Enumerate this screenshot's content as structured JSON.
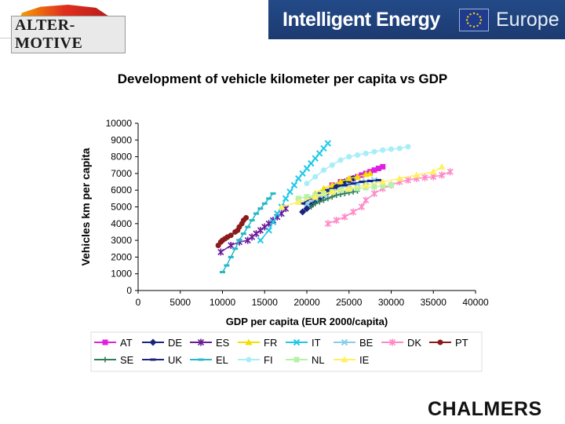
{
  "header": {
    "left_logo_text": "ALTER-MOTIVE",
    "right_logo_text": "Intelligent Energy",
    "right_logo_suffix": "Europe"
  },
  "title": "Development of vehicle kilometer per capita vs GDP",
  "footer_logo": "CHALMERS",
  "chart_data": {
    "type": "scatter",
    "title": "Development of vehicle kilometer per capita vs GDP",
    "xlabel": "GDP per capita (EUR 2000/capita)",
    "ylabel": "Vehicles km per capita",
    "xlim": [
      0,
      40000
    ],
    "ylim": [
      0,
      10000
    ],
    "xticks": [
      0,
      5000,
      10000,
      15000,
      20000,
      25000,
      30000,
      35000,
      40000
    ],
    "yticks": [
      0,
      1000,
      2000,
      3000,
      4000,
      5000,
      6000,
      7000,
      8000,
      9000,
      10000
    ],
    "grid": false,
    "legend_position": "bottom",
    "series": [
      {
        "name": "AT",
        "color": "#e020e0",
        "marker": "square",
        "x": [
          23000,
          24000,
          25000,
          25500,
          26000,
          26500,
          27000,
          27500,
          28000,
          28500,
          29000
        ],
        "y": [
          6300,
          6500,
          6600,
          6700,
          6800,
          6900,
          7000,
          7100,
          7200,
          7300,
          7400
        ]
      },
      {
        "name": "DE",
        "color": "#1a237e",
        "marker": "diamond",
        "x": [
          19500,
          20000,
          20500,
          21000,
          21500,
          22000,
          22500,
          23000,
          23500,
          24000,
          24500,
          25000,
          25500
        ],
        "y": [
          4700,
          4900,
          5100,
          5300,
          5500,
          5700,
          5900,
          6100,
          6250,
          6400,
          6500,
          6600,
          6700
        ]
      },
      {
        "name": "ES",
        "color": "#6a1b9a",
        "marker": "star",
        "x": [
          9800,
          11000,
          12000,
          13000,
          13500,
          14000,
          14500,
          15000,
          15500,
          16000,
          16500,
          17000,
          17500
        ],
        "y": [
          2300,
          2700,
          2900,
          3000,
          3200,
          3400,
          3600,
          3800,
          4000,
          4200,
          4400,
          4600,
          4900
        ]
      },
      {
        "name": "FR",
        "color": "#f0e000",
        "marker": "triangle",
        "x": [
          21000,
          22000,
          23000,
          24000,
          25000,
          26000,
          27000,
          27500
        ],
        "y": [
          5800,
          6100,
          6300,
          6500,
          6700,
          6800,
          6950,
          7000
        ]
      },
      {
        "name": "IT",
        "color": "#1ec8e8",
        "marker": "x",
        "x": [
          14500,
          15500,
          16000,
          16500,
          17000,
          17500,
          18000,
          18500,
          19000,
          19500,
          20000,
          20500,
          21000,
          21500,
          22000,
          22500
        ],
        "y": [
          3000,
          3600,
          4100,
          4600,
          5000,
          5500,
          5900,
          6300,
          6700,
          7000,
          7300,
          7600,
          7900,
          8200,
          8500,
          8800
        ]
      },
      {
        "name": "BE",
        "color": "#87ceeb",
        "marker": "x",
        "x": [
          20000,
          21000,
          22000,
          23000,
          24000,
          25000,
          26000,
          27000,
          28000
        ],
        "y": [
          5200,
          5500,
          5700,
          5900,
          6100,
          6300,
          6400,
          6500,
          6600
        ]
      },
      {
        "name": "DK",
        "color": "#ff88c8",
        "marker": "star",
        "x": [
          22500,
          23500,
          24500,
          25500,
          26500,
          27000,
          28000,
          29000,
          30000,
          31000,
          32000,
          33000,
          34000,
          35000,
          36000,
          37000
        ],
        "y": [
          4000,
          4200,
          4400,
          4700,
          5000,
          5400,
          5800,
          6100,
          6300,
          6500,
          6600,
          6700,
          6750,
          6800,
          6900,
          7100
        ]
      },
      {
        "name": "PT",
        "color": "#8b1a1a",
        "marker": "circle",
        "x": [
          9500,
          9800,
          10000,
          10300,
          10600,
          11000,
          11500,
          11800,
          12000,
          12300,
          12500,
          12800
        ],
        "y": [
          2700,
          2900,
          3000,
          3100,
          3200,
          3300,
          3500,
          3600,
          3800,
          4000,
          4200,
          4350
        ]
      },
      {
        "name": "SE",
        "color": "#2e7d5b",
        "marker": "plus",
        "x": [
          20500,
          21000,
          21500,
          22000,
          22500,
          23000,
          23500,
          24000,
          24500,
          25000,
          25500,
          26000
        ],
        "y": [
          5000,
          5200,
          5300,
          5400,
          5500,
          5600,
          5700,
          5750,
          5800,
          5850,
          5900,
          5950
        ]
      },
      {
        "name": "UK",
        "color": "#1a237e",
        "marker": "dash",
        "x": [
          19500,
          20500,
          21500,
          22500,
          23500,
          24500,
          25500,
          26500,
          27500,
          28500
        ],
        "y": [
          5200,
          5500,
          5800,
          6000,
          6200,
          6300,
          6400,
          6500,
          6550,
          6600
        ]
      },
      {
        "name": "EL",
        "color": "#26b8c8",
        "marker": "dash",
        "x": [
          10000,
          10500,
          11000,
          11500,
          12000,
          12500,
          13000,
          13500,
          14000,
          14500,
          15000,
          15500,
          16000
        ],
        "y": [
          1100,
          1500,
          2000,
          2500,
          3000,
          3400,
          3800,
          4200,
          4600,
          4900,
          5200,
          5500,
          5800
        ]
      },
      {
        "name": "FI",
        "color": "#a6eef8",
        "marker": "circle",
        "x": [
          20000,
          21000,
          22000,
          23000,
          24000,
          25000,
          26000,
          27000,
          28000,
          29000,
          30000,
          31000,
          32000
        ],
        "y": [
          6400,
          6800,
          7200,
          7500,
          7800,
          8000,
          8100,
          8200,
          8300,
          8400,
          8450,
          8500,
          8600
        ]
      },
      {
        "name": "NL",
        "color": "#b8f0a8",
        "marker": "square",
        "x": [
          19000,
          20000,
          21000,
          22000,
          23000,
          24000,
          25000,
          26000,
          27000,
          28000,
          29000,
          30000
        ],
        "y": [
          5500,
          5600,
          5700,
          5800,
          5900,
          6000,
          6050,
          6100,
          6150,
          6200,
          6250,
          6300
        ]
      },
      {
        "name": "IE",
        "color": "#fff060",
        "marker": "triangle",
        "x": [
          17000,
          19000,
          21000,
          23000,
          25000,
          27000,
          29000,
          31000,
          33000,
          35000,
          36000
        ],
        "y": [
          5000,
          5300,
          5600,
          5900,
          6100,
          6300,
          6500,
          6700,
          6900,
          7100,
          7400
        ]
      }
    ]
  }
}
